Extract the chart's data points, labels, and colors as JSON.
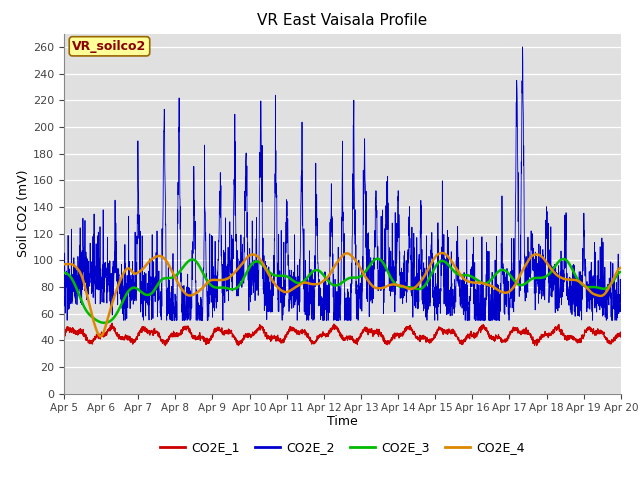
{
  "title": "VR East Vaisala Profile",
  "xlabel": "Time",
  "ylabel": "Soil CO2 (mV)",
  "ylim": [
    0,
    260
  ],
  "yticks": [
    0,
    20,
    40,
    60,
    80,
    100,
    120,
    140,
    160,
    180,
    200,
    220,
    240,
    260
  ],
  "xtick_labels": [
    "Apr 5",
    "Apr 6",
    "Apr 7",
    "Apr 8",
    "Apr 9",
    "Apr 10",
    "Apr 11",
    "Apr 12",
    "Apr 13",
    "Apr 14",
    "Apr 15",
    "Apr 16",
    "Apr 17",
    "Apr 18",
    "Apr 19",
    "Apr 20"
  ],
  "colors": {
    "CO2E_1": "#cc0000",
    "CO2E_2": "#0000cc",
    "CO2E_3": "#00bb00",
    "CO2E_4": "#dd8800"
  },
  "background_color": "#e0e0e0",
  "grid_color": "#ffffff",
  "annotation_text": "VR_soilco2",
  "annotation_bg": "#ffff99",
  "annotation_text_color": "#8b0000",
  "annotation_border": "#996600"
}
